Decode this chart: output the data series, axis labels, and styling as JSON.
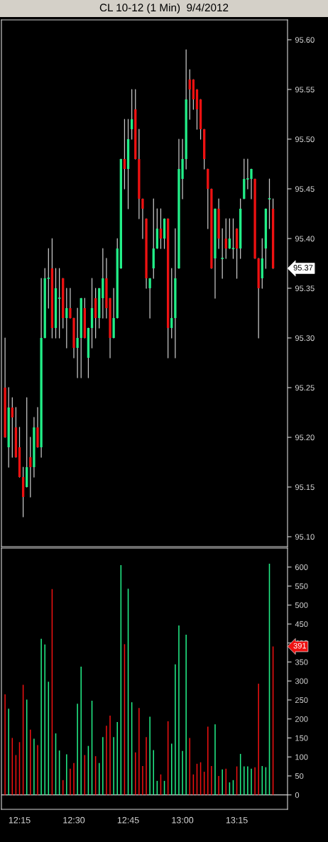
{
  "chart_data": [
    {
      "type": "candlestick",
      "title": "CL 10-12 (1 Min)  9/4/2012",
      "x": [
        "2012-09-04T12:11",
        "2012-09-04T12:12",
        "2012-09-04T12:13",
        "2012-09-04T12:14",
        "2012-09-04T12:15",
        "2012-09-04T12:16",
        "2012-09-04T12:17",
        "2012-09-04T12:18",
        "2012-09-04T12:19",
        "2012-09-04T12:20",
        "2012-09-04T12:21",
        "2012-09-04T12:22",
        "2012-09-04T12:23",
        "2012-09-04T12:24",
        "2012-09-04T12:25",
        "2012-09-04T12:26",
        "2012-09-04T12:27",
        "2012-09-04T12:28",
        "2012-09-04T12:29",
        "2012-09-04T12:30",
        "2012-09-04T12:31",
        "2012-09-04T12:32",
        "2012-09-04T12:33",
        "2012-09-04T12:34",
        "2012-09-04T12:35",
        "2012-09-04T12:36",
        "2012-09-04T12:37",
        "2012-09-04T12:38",
        "2012-09-04T12:39",
        "2012-09-04T12:40",
        "2012-09-04T12:41",
        "2012-09-04T12:42",
        "2012-09-04T12:43",
        "2012-09-04T12:44",
        "2012-09-04T12:45",
        "2012-09-04T12:46",
        "2012-09-04T12:47",
        "2012-09-04T12:48",
        "2012-09-04T12:49",
        "2012-09-04T12:50",
        "2012-09-04T12:51",
        "2012-09-04T12:52",
        "2012-09-04T12:53",
        "2012-09-04T12:54",
        "2012-09-04T12:55",
        "2012-09-04T12:56",
        "2012-09-04T12:57",
        "2012-09-04T12:58",
        "2012-09-04T12:59",
        "2012-09-04T13:00",
        "2012-09-04T13:01",
        "2012-09-04T13:02",
        "2012-09-04T13:03",
        "2012-09-04T13:04",
        "2012-09-04T13:05",
        "2012-09-04T13:06",
        "2012-09-04T13:07",
        "2012-09-04T13:08",
        "2012-09-04T13:09",
        "2012-09-04T13:10",
        "2012-09-04T13:11",
        "2012-09-04T13:12",
        "2012-09-04T13:13",
        "2012-09-04T13:14",
        "2012-09-04T13:15",
        "2012-09-04T13:16",
        "2012-09-04T13:17",
        "2012-09-04T13:18",
        "2012-09-04T13:19",
        "2012-09-04T13:20",
        "2012-09-04T13:21",
        "2012-09-04T13:22",
        "2012-09-04T13:23",
        "2012-09-04T13:24",
        "2012-09-04T13:25"
      ],
      "ohlc": [
        [
          95.25,
          95.3,
          95.2,
          95.2
        ],
        [
          95.19,
          95.25,
          95.17,
          95.23
        ],
        [
          95.23,
          95.24,
          95.18,
          95.22
        ],
        [
          95.21,
          95.23,
          95.18,
          95.18
        ],
        [
          95.19,
          95.21,
          95.16,
          95.16
        ],
        [
          95.16,
          95.17,
          95.12,
          95.14
        ],
        [
          95.15,
          95.24,
          95.15,
          95.17
        ],
        [
          95.18,
          95.2,
          95.14,
          95.17
        ],
        [
          95.17,
          95.22,
          95.16,
          95.21
        ],
        [
          95.21,
          95.23,
          95.19,
          95.19
        ],
        [
          95.19,
          95.36,
          95.18,
          95.3
        ],
        [
          95.3,
          95.37,
          95.3,
          95.36
        ],
        [
          95.36,
          95.39,
          95.33,
          95.36
        ],
        [
          95.37,
          95.4,
          95.3,
          95.31
        ],
        [
          95.31,
          95.37,
          95.3,
          95.35
        ],
        [
          95.34,
          95.37,
          95.3,
          95.34
        ],
        [
          95.36,
          95.36,
          95.31,
          95.32
        ],
        [
          95.32,
          95.35,
          95.29,
          95.33
        ],
        [
          95.33,
          95.35,
          95.32,
          95.32
        ],
        [
          95.32,
          95.32,
          95.28,
          95.29
        ],
        [
          95.29,
          95.33,
          95.26,
          95.3
        ],
        [
          95.3,
          95.34,
          95.26,
          95.34
        ],
        [
          95.33,
          95.34,
          95.3,
          95.3
        ],
        [
          95.28,
          95.31,
          95.26,
          95.31
        ],
        [
          95.31,
          95.36,
          95.29,
          95.33
        ],
        [
          95.34,
          95.35,
          95.3,
          95.32
        ],
        [
          95.32,
          95.35,
          95.31,
          95.35
        ],
        [
          95.34,
          95.39,
          95.32,
          95.36
        ],
        [
          95.36,
          95.38,
          95.32,
          95.33
        ],
        [
          95.34,
          95.34,
          95.28,
          95.3
        ],
        [
          95.3,
          95.35,
          95.3,
          95.32
        ],
        [
          95.32,
          95.4,
          95.32,
          95.39
        ],
        [
          95.37,
          95.48,
          95.37,
          95.48
        ],
        [
          95.48,
          95.52,
          95.45,
          95.47
        ],
        [
          95.47,
          95.52,
          95.43,
          95.5
        ],
        [
          95.51,
          95.55,
          95.5,
          95.52
        ],
        [
          95.53,
          95.55,
          95.48,
          95.48
        ],
        [
          95.48,
          95.51,
          95.42,
          95.44
        ],
        [
          95.44,
          95.44,
          95.4,
          95.43
        ],
        [
          95.42,
          95.42,
          95.35,
          95.36
        ],
        [
          95.35,
          95.36,
          95.32,
          95.36
        ],
        [
          95.37,
          95.44,
          95.36,
          95.39
        ],
        [
          95.39,
          95.43,
          95.39,
          95.41
        ],
        [
          95.41,
          95.43,
          95.39,
          95.4
        ],
        [
          95.4,
          95.42,
          95.39,
          95.42
        ],
        [
          95.42,
          95.42,
          95.28,
          95.31
        ],
        [
          95.31,
          95.37,
          95.3,
          95.32
        ],
        [
          95.32,
          95.41,
          95.28,
          95.36
        ],
        [
          95.37,
          95.5,
          95.37,
          95.47
        ],
        [
          95.46,
          95.5,
          95.44,
          95.48
        ],
        [
          95.48,
          95.59,
          95.47,
          95.54
        ],
        [
          95.56,
          95.57,
          95.52,
          95.55
        ],
        [
          95.56,
          95.56,
          95.53,
          95.54
        ],
        [
          95.55,
          95.55,
          95.51,
          95.53
        ],
        [
          95.54,
          95.54,
          95.5,
          95.51
        ],
        [
          95.51,
          95.51,
          95.47,
          95.48
        ],
        [
          95.47,
          95.47,
          95.41,
          95.45
        ],
        [
          95.45,
          95.45,
          95.37,
          95.37
        ],
        [
          95.38,
          95.43,
          95.34,
          95.43
        ],
        [
          95.43,
          95.44,
          95.39,
          95.4
        ],
        [
          95.38,
          95.41,
          95.36,
          95.38
        ],
        [
          95.4,
          95.42,
          95.38,
          95.39
        ],
        [
          95.39,
          95.42,
          95.39,
          95.4
        ],
        [
          95.39,
          95.42,
          95.38,
          95.39
        ],
        [
          95.41,
          95.41,
          95.36,
          95.39
        ],
        [
          95.39,
          95.44,
          95.38,
          95.43
        ],
        [
          95.44,
          95.48,
          95.44,
          95.46
        ],
        [
          95.46,
          95.48,
          95.45,
          95.46
        ],
        [
          95.46,
          95.47,
          95.44,
          95.47
        ],
        [
          95.46,
          95.46,
          95.38,
          95.38
        ],
        [
          95.38,
          95.38,
          95.3,
          95.35
        ],
        [
          95.36,
          95.4,
          95.35,
          95.38
        ],
        [
          95.39,
          95.43,
          95.37,
          95.43
        ],
        [
          95.44,
          95.46,
          95.41,
          95.44
        ],
        [
          95.43,
          95.44,
          95.37,
          95.37
        ]
      ],
      "colors": [
        "#ee1111",
        "#22ee88",
        "#ee1111",
        "#ee1111",
        "#ee1111",
        "#ee1111",
        "#22ee88",
        "#ee1111",
        "#22ee88",
        "#ee1111",
        "#22ee88",
        "#22ee88",
        "#22ee88",
        "#ee1111",
        "#22ee88",
        "#22ee88",
        "#ee1111",
        "#22ee88",
        "#ee1111",
        "#ee1111",
        "#22ee88",
        "#22ee88",
        "#ee1111",
        "#22ee88",
        "#22ee88",
        "#ee1111",
        "#22ee88",
        "#22ee88",
        "#ee1111",
        "#ee1111",
        "#22ee88",
        "#22ee88",
        "#22ee88",
        "#ee1111",
        "#22ee88",
        "#22ee88",
        "#ee1111",
        "#ee1111",
        "#ee1111",
        "#ee1111",
        "#22ee88",
        "#22ee88",
        "#22ee88",
        "#ee1111",
        "#22ee88",
        "#ee1111",
        "#22ee88",
        "#22ee88",
        "#22ee88",
        "#22ee88",
        "#22ee88",
        "#ee1111",
        "#ee1111",
        "#ee1111",
        "#ee1111",
        "#ee1111",
        "#ee1111",
        "#ee1111",
        "#22ee88",
        "#ee1111",
        "#22ee88",
        "#ee1111",
        "#22ee88",
        "#22ee88",
        "#ee1111",
        "#22ee88",
        "#22ee88",
        "#22ee88",
        "#22ee88",
        "#ee1111",
        "#ee1111",
        "#22ee88",
        "#22ee88",
        "#22ee88",
        "#ee1111"
      ],
      "xlim": [
        "2012-09-04T12:10",
        "2012-09-04T13:29"
      ],
      "ylim": [
        95.09,
        95.62
      ],
      "yticks": [
        {
          "value": 95.1,
          "label": "95.10"
        },
        {
          "value": 95.15,
          "label": "95.15"
        },
        {
          "value": 95.2,
          "label": "95.20"
        },
        {
          "value": 95.25,
          "label": "95.25"
        },
        {
          "value": 95.3,
          "label": "95.30"
        },
        {
          "value": 95.35,
          "label": "95.35"
        },
        {
          "value": 95.4,
          "label": "95.40"
        },
        {
          "value": 95.45,
          "label": "95.45"
        },
        {
          "value": 95.5,
          "label": "95.50"
        },
        {
          "value": 95.55,
          "label": "95.55"
        },
        {
          "value": 95.6,
          "label": "95.60"
        }
      ],
      "tick_labels": "y",
      "annotations": [
        {
          "text": "95.37",
          "x": "2012-09-04T13:25",
          "y": 95.37
        }
      ]
    },
    {
      "type": "bar",
      "x": [
        "2012-09-04T12:11",
        "2012-09-04T12:12",
        "2012-09-04T12:13",
        "2012-09-04T12:14",
        "2012-09-04T12:15",
        "2012-09-04T12:16",
        "2012-09-04T12:17",
        "2012-09-04T12:18",
        "2012-09-04T12:19",
        "2012-09-04T12:20",
        "2012-09-04T12:21",
        "2012-09-04T12:22",
        "2012-09-04T12:23",
        "2012-09-04T12:24",
        "2012-09-04T12:25",
        "2012-09-04T12:26",
        "2012-09-04T12:27",
        "2012-09-04T12:28",
        "2012-09-04T12:29",
        "2012-09-04T12:30",
        "2012-09-04T12:31",
        "2012-09-04T12:32",
        "2012-09-04T12:33",
        "2012-09-04T12:34",
        "2012-09-04T12:35",
        "2012-09-04T12:36",
        "2012-09-04T12:37",
        "2012-09-04T12:38",
        "2012-09-04T12:39",
        "2012-09-04T12:40",
        "2012-09-04T12:41",
        "2012-09-04T12:42",
        "2012-09-04T12:43",
        "2012-09-04T12:44",
        "2012-09-04T12:45",
        "2012-09-04T12:46",
        "2012-09-04T12:47",
        "2012-09-04T12:48",
        "2012-09-04T12:49",
        "2012-09-04T12:50",
        "2012-09-04T12:51",
        "2012-09-04T12:52",
        "2012-09-04T12:53",
        "2012-09-04T12:54",
        "2012-09-04T12:55",
        "2012-09-04T12:56",
        "2012-09-04T12:57",
        "2012-09-04T12:58",
        "2012-09-04T12:59",
        "2012-09-04T13:00",
        "2012-09-04T13:01",
        "2012-09-04T13:02",
        "2012-09-04T13:03",
        "2012-09-04T13:04",
        "2012-09-04T13:05",
        "2012-09-04T13:06",
        "2012-09-04T13:07",
        "2012-09-04T13:08",
        "2012-09-04T13:09",
        "2012-09-04T13:10",
        "2012-09-04T13:11",
        "2012-09-04T13:12",
        "2012-09-04T13:13",
        "2012-09-04T13:14",
        "2012-09-04T13:15",
        "2012-09-04T13:16",
        "2012-09-04T13:17",
        "2012-09-04T13:18",
        "2012-09-04T13:19",
        "2012-09-04T13:20",
        "2012-09-04T13:21",
        "2012-09-04T13:22",
        "2012-09-04T13:23",
        "2012-09-04T13:24",
        "2012-09-04T13:25"
      ],
      "values": [
        265,
        227,
        150,
        105,
        139,
        290,
        251,
        172,
        148,
        131,
        411,
        396,
        298,
        542,
        162,
        117,
        39,
        107,
        69,
        84,
        240,
        338,
        105,
        129,
        248,
        102,
        84,
        152,
        182,
        209,
        152,
        192,
        605,
        397,
        543,
        244,
        112,
        229,
        76,
        152,
        206,
        118,
        37,
        54,
        37,
        194,
        135,
        344,
        446,
        116,
        422,
        150,
        54,
        82,
        86,
        61,
        180,
        76,
        186,
        50,
        67,
        69,
        33,
        39,
        75,
        108,
        75,
        75,
        69,
        73,
        293,
        76,
        73,
        609,
        391
      ],
      "colors": [
        "#ee1111",
        "#22ee88",
        "#ee1111",
        "#ee1111",
        "#ee1111",
        "#ee1111",
        "#22ee88",
        "#ee1111",
        "#22ee88",
        "#ee1111",
        "#22ee88",
        "#22ee88",
        "#22ee88",
        "#ee1111",
        "#22ee88",
        "#22ee88",
        "#ee1111",
        "#22ee88",
        "#ee1111",
        "#ee1111",
        "#22ee88",
        "#22ee88",
        "#ee1111",
        "#22ee88",
        "#22ee88",
        "#ee1111",
        "#22ee88",
        "#22ee88",
        "#ee1111",
        "#ee1111",
        "#22ee88",
        "#22ee88",
        "#22ee88",
        "#ee1111",
        "#22ee88",
        "#22ee88",
        "#ee1111",
        "#ee1111",
        "#ee1111",
        "#ee1111",
        "#22ee88",
        "#22ee88",
        "#22ee88",
        "#ee1111",
        "#22ee88",
        "#ee1111",
        "#22ee88",
        "#22ee88",
        "#22ee88",
        "#22ee88",
        "#22ee88",
        "#ee1111",
        "#ee1111",
        "#ee1111",
        "#ee1111",
        "#ee1111",
        "#ee1111",
        "#ee1111",
        "#22ee88",
        "#ee1111",
        "#22ee88",
        "#ee1111",
        "#22ee88",
        "#22ee88",
        "#ee1111",
        "#22ee88",
        "#22ee88",
        "#22ee88",
        "#22ee88",
        "#ee1111",
        "#ee1111",
        "#22ee88",
        "#22ee88",
        "#22ee88",
        "#ee1111"
      ],
      "xlim": [
        "2012-09-04T12:10",
        "2012-09-04T13:29"
      ],
      "xticks": [
        {
          "value": "2012-09-04T12:15",
          "label": "12:15"
        },
        {
          "value": "2012-09-04T12:30",
          "label": "12:30"
        },
        {
          "value": "2012-09-04T12:45",
          "label": "12:45"
        },
        {
          "value": "2012-09-04T13:00",
          "label": "13:00"
        },
        {
          "value": "2012-09-04T13:15",
          "label": "13:15"
        }
      ],
      "ylim": [
        -38,
        650
      ],
      "yticks": [
        0,
        50,
        100,
        150,
        200,
        250,
        300,
        350,
        400,
        450,
        500,
        550,
        600
      ],
      "ref_lines": [
        {
          "axis": "y",
          "value": 0,
          "color": "#d0d0d0"
        }
      ],
      "annotations": [
        {
          "text": "391",
          "x": "2012-09-04T13:25",
          "y": 391
        }
      ]
    }
  ]
}
